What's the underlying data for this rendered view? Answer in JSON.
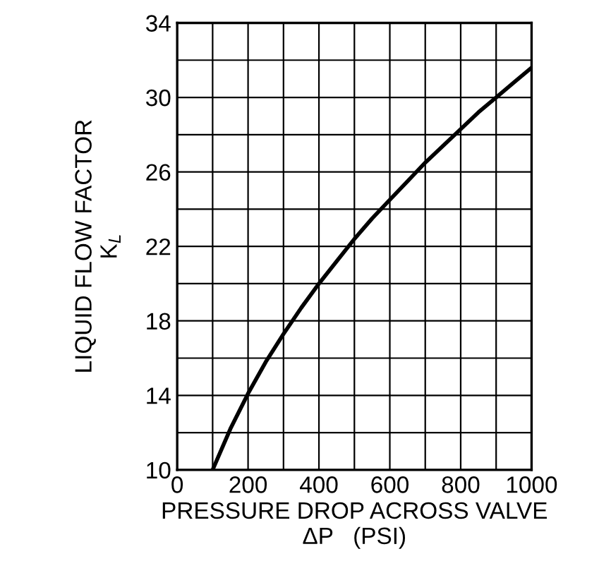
{
  "chart_data": {
    "type": "line",
    "xlabel": "PRESSURE DROP ACROSS VALVE\nΔP   (PSI)",
    "ylabel": "LIQUID FLOW FACTOR\nK$_{L}$",
    "x": [
      100,
      150,
      200,
      250,
      300,
      350,
      400,
      450,
      500,
      550,
      600,
      650,
      700,
      750,
      800,
      850,
      900,
      950,
      1000
    ],
    "series": [
      {
        "color": "#000000",
        "values": [
          10.0,
          12.2,
          14.1,
          15.8,
          17.3,
          18.7,
          20.0,
          21.2,
          22.4,
          23.5,
          24.5,
          25.5,
          26.5,
          27.4,
          28.3,
          29.2,
          30.0,
          30.8,
          31.6
        ]
      }
    ],
    "xlim": [
      0,
      1000
    ],
    "ylim": [
      10,
      34
    ],
    "xticks": [
      0,
      {
        "value": 100,
        "label": null
      },
      200,
      {
        "value": 300,
        "label": null
      },
      400,
      {
        "value": 500,
        "label": null
      },
      600,
      {
        "value": 700,
        "label": null
      },
      800,
      {
        "value": 900,
        "label": null
      },
      1000
    ],
    "yticks": [
      10,
      {
        "value": 12,
        "label": null
      },
      14,
      {
        "value": 16,
        "label": null
      },
      18,
      {
        "value": 20,
        "label": null
      },
      22,
      {
        "value": 24,
        "label": null
      },
      26,
      {
        "value": 28,
        "label": null
      },
      30,
      {
        "value": 32,
        "label": null
      },
      34
    ],
    "grid": true,
    "line_style": "solid"
  }
}
